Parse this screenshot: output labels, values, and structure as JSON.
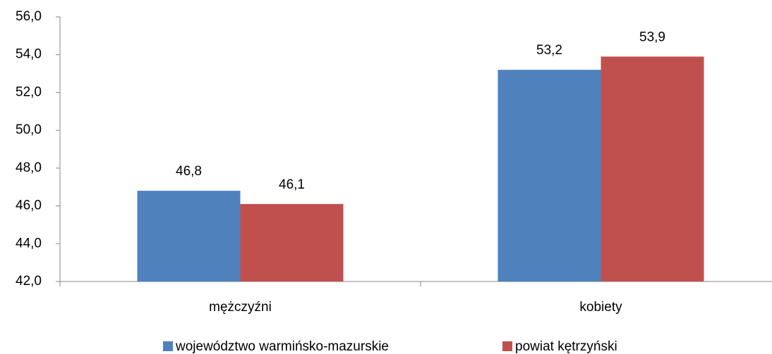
{
  "chart_data": {
    "type": "bar",
    "categories": [
      "mężczyźni",
      "kobiety"
    ],
    "series": [
      {
        "name": "województwo warmińsko-mazurskie",
        "color": "#4f81bd",
        "values": [
          46.8,
          53.2
        ],
        "value_labels": [
          "46,8",
          "53,2"
        ]
      },
      {
        "name": "powiat kętrzyński",
        "color": "#c0504d",
        "values": [
          46.1,
          53.9
        ],
        "value_labels": [
          "46,1",
          "53,9"
        ]
      }
    ],
    "ylim": [
      42,
      56
    ],
    "yticks": [
      {
        "value": 42,
        "label": "42,0"
      },
      {
        "value": 44,
        "label": "44,0"
      },
      {
        "value": 46,
        "label": "46,0"
      },
      {
        "value": 48,
        "label": "48,0"
      },
      {
        "value": 50,
        "label": "50,0"
      },
      {
        "value": 52,
        "label": "52,0"
      },
      {
        "value": 54,
        "label": "54,0"
      },
      {
        "value": 56,
        "label": "56,0"
      }
    ],
    "grid": false,
    "legend": "bottom"
  }
}
